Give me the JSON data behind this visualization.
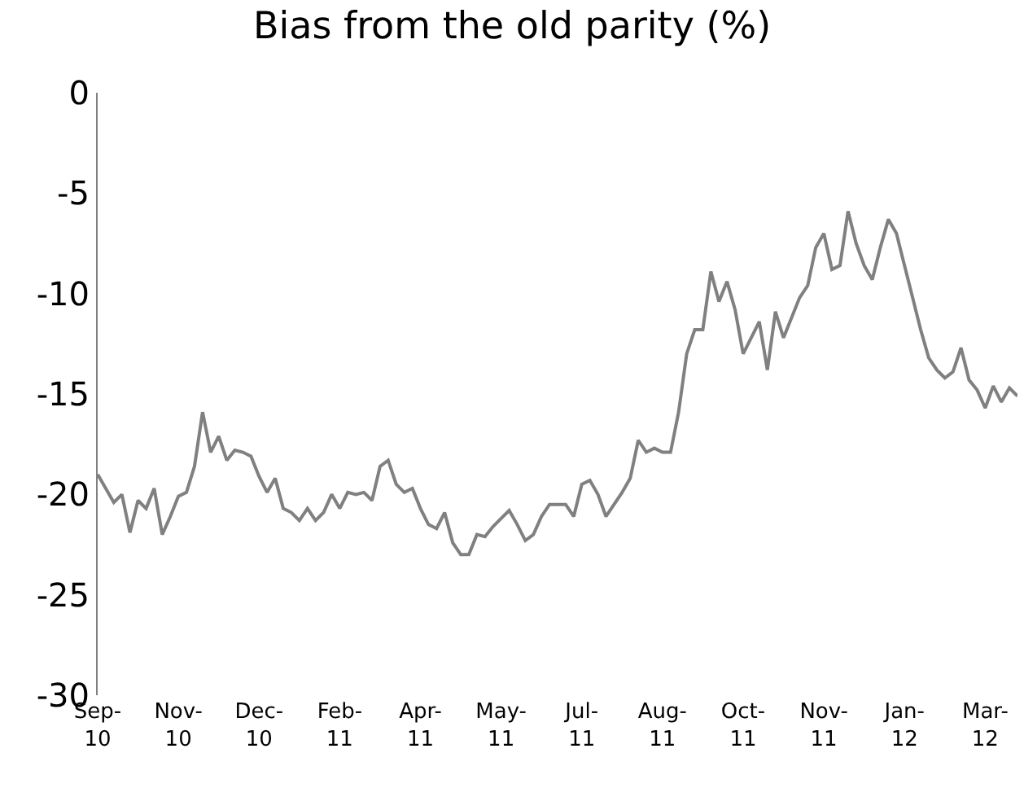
{
  "chart_data": {
    "type": "line",
    "title": "Bias from the old parity (%)",
    "categories": [
      "Sep-10",
      null,
      null,
      null,
      null,
      null,
      null,
      null,
      null,
      null,
      "Nov-10",
      null,
      null,
      null,
      null,
      null,
      null,
      null,
      null,
      null,
      "Dec-10",
      null,
      null,
      null,
      null,
      null,
      null,
      null,
      null,
      null,
      "Feb-11",
      null,
      null,
      null,
      null,
      null,
      null,
      null,
      null,
      null,
      "Apr-11",
      null,
      null,
      null,
      null,
      null,
      null,
      null,
      null,
      null,
      "May-11",
      null,
      null,
      null,
      null,
      null,
      null,
      null,
      null,
      null,
      "Jul-11",
      null,
      null,
      null,
      null,
      null,
      null,
      null,
      null,
      null,
      "Aug-11",
      null,
      null,
      null,
      null,
      null,
      null,
      null,
      null,
      null,
      "Oct-11",
      null,
      null,
      null,
      null,
      null,
      null,
      null,
      null,
      null,
      "Nov-11",
      null,
      null,
      null,
      null,
      null,
      null,
      null,
      null,
      null,
      "Jan-12",
      null,
      null,
      null,
      null,
      null,
      null,
      null,
      null,
      null,
      "Mar-12",
      null,
      null,
      null,
      null
    ],
    "series": [
      {
        "color": "#808080",
        "values": [
          -19.0,
          -19.7,
          -20.4,
          -20.0,
          -21.9,
          -20.3,
          -20.7,
          -19.7,
          -22.0,
          -21.1,
          -20.1,
          -19.9,
          -18.6,
          -15.9,
          -17.9,
          -17.1,
          -18.3,
          -17.8,
          -17.9,
          -18.1,
          -19.1,
          -19.9,
          -19.2,
          -20.7,
          -20.9,
          -21.3,
          -20.7,
          -21.3,
          -20.9,
          -20.0,
          -20.7,
          -19.9,
          -20.0,
          -19.9,
          -20.3,
          -18.6,
          -18.3,
          -19.5,
          -19.9,
          -19.7,
          -20.7,
          -21.5,
          -21.7,
          -20.9,
          -22.4,
          -23.0,
          -23.0,
          -22.0,
          -22.1,
          -21.6,
          -21.2,
          -20.8,
          -21.5,
          -22.3,
          -22.0,
          -21.1,
          -20.5,
          -20.5,
          -20.5,
          -21.1,
          -19.5,
          -19.3,
          -20.0,
          -21.1,
          -20.5,
          -19.9,
          -19.2,
          -17.3,
          -17.9,
          -17.7,
          -17.9,
          -17.9,
          -15.9,
          -13.0,
          -11.8,
          -11.8,
          -8.9,
          -10.4,
          -9.4,
          -10.8,
          -13.0,
          -12.2,
          -11.4,
          -13.8,
          -10.9,
          -12.2,
          -11.2,
          -10.2,
          -9.6,
          -7.7,
          -7.0,
          -8.8,
          -8.6,
          -5.9,
          -7.5,
          -8.6,
          -9.3,
          -7.7,
          -6.3,
          -7.0,
          -8.6,
          -10.2,
          -11.8,
          -13.2,
          -13.8,
          -14.2,
          -13.9,
          -12.7,
          -14.3,
          -14.8,
          -15.7,
          -14.6,
          -15.4,
          -14.7,
          -15.1
        ]
      }
    ],
    "ylim": [
      -30,
      0
    ],
    "yticks": [
      -30,
      -25,
      -20,
      -15,
      -10,
      -5,
      0
    ],
    "grid": false,
    "marker": "none",
    "line_style": "solid"
  }
}
